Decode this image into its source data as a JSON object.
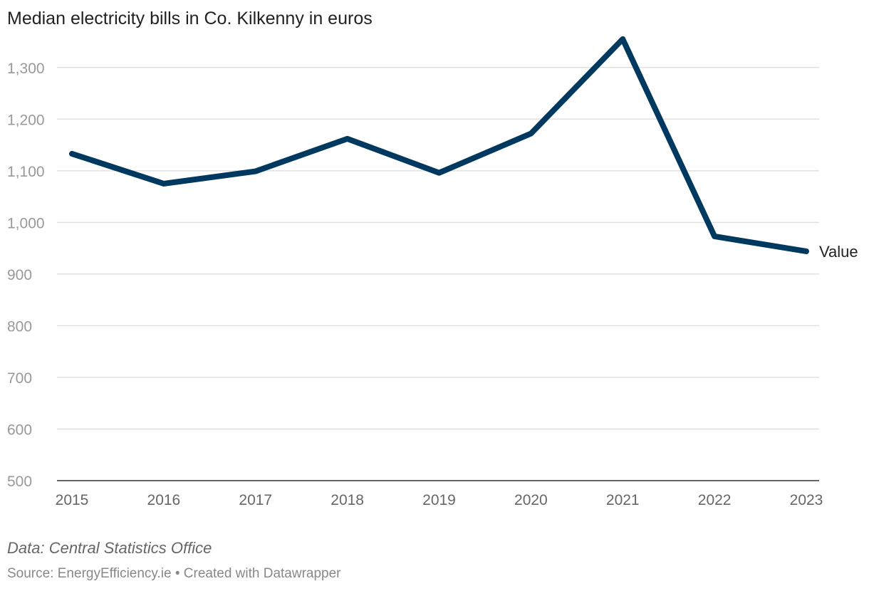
{
  "chart_data": {
    "type": "line",
    "title": "Median electricity bills in Co. Kilkenny in euros",
    "categories": [
      "2015",
      "2016",
      "2017",
      "2018",
      "2019",
      "2020",
      "2021",
      "2022",
      "2023"
    ],
    "series": [
      {
        "name": "Value",
        "values": [
          1133,
          1075,
          1099,
          1162,
          1096,
          1172,
          1355,
          973,
          944
        ],
        "color": "#00395f"
      }
    ],
    "yticks": [
      500,
      600,
      700,
      800,
      900,
      1000,
      1100,
      1200,
      1300
    ],
    "ytick_labels": [
      "500",
      "600",
      "700",
      "800",
      "900",
      "1,000",
      "1,100",
      "1,200",
      "1,300"
    ],
    "ylim": [
      500,
      1370
    ],
    "xlabel": "",
    "ylabel": "",
    "grid": true,
    "legend": "inline-end-label"
  },
  "footer": {
    "data_note": "Data: Central Statistics Office",
    "source": "Source: EnergyEfficiency.ie • Created with Datawrapper"
  },
  "colors": {
    "line": "#00395f",
    "grid": "#e0e0e0",
    "axis": "#333333",
    "tick_text": "#999999",
    "label_text": "#222222"
  }
}
